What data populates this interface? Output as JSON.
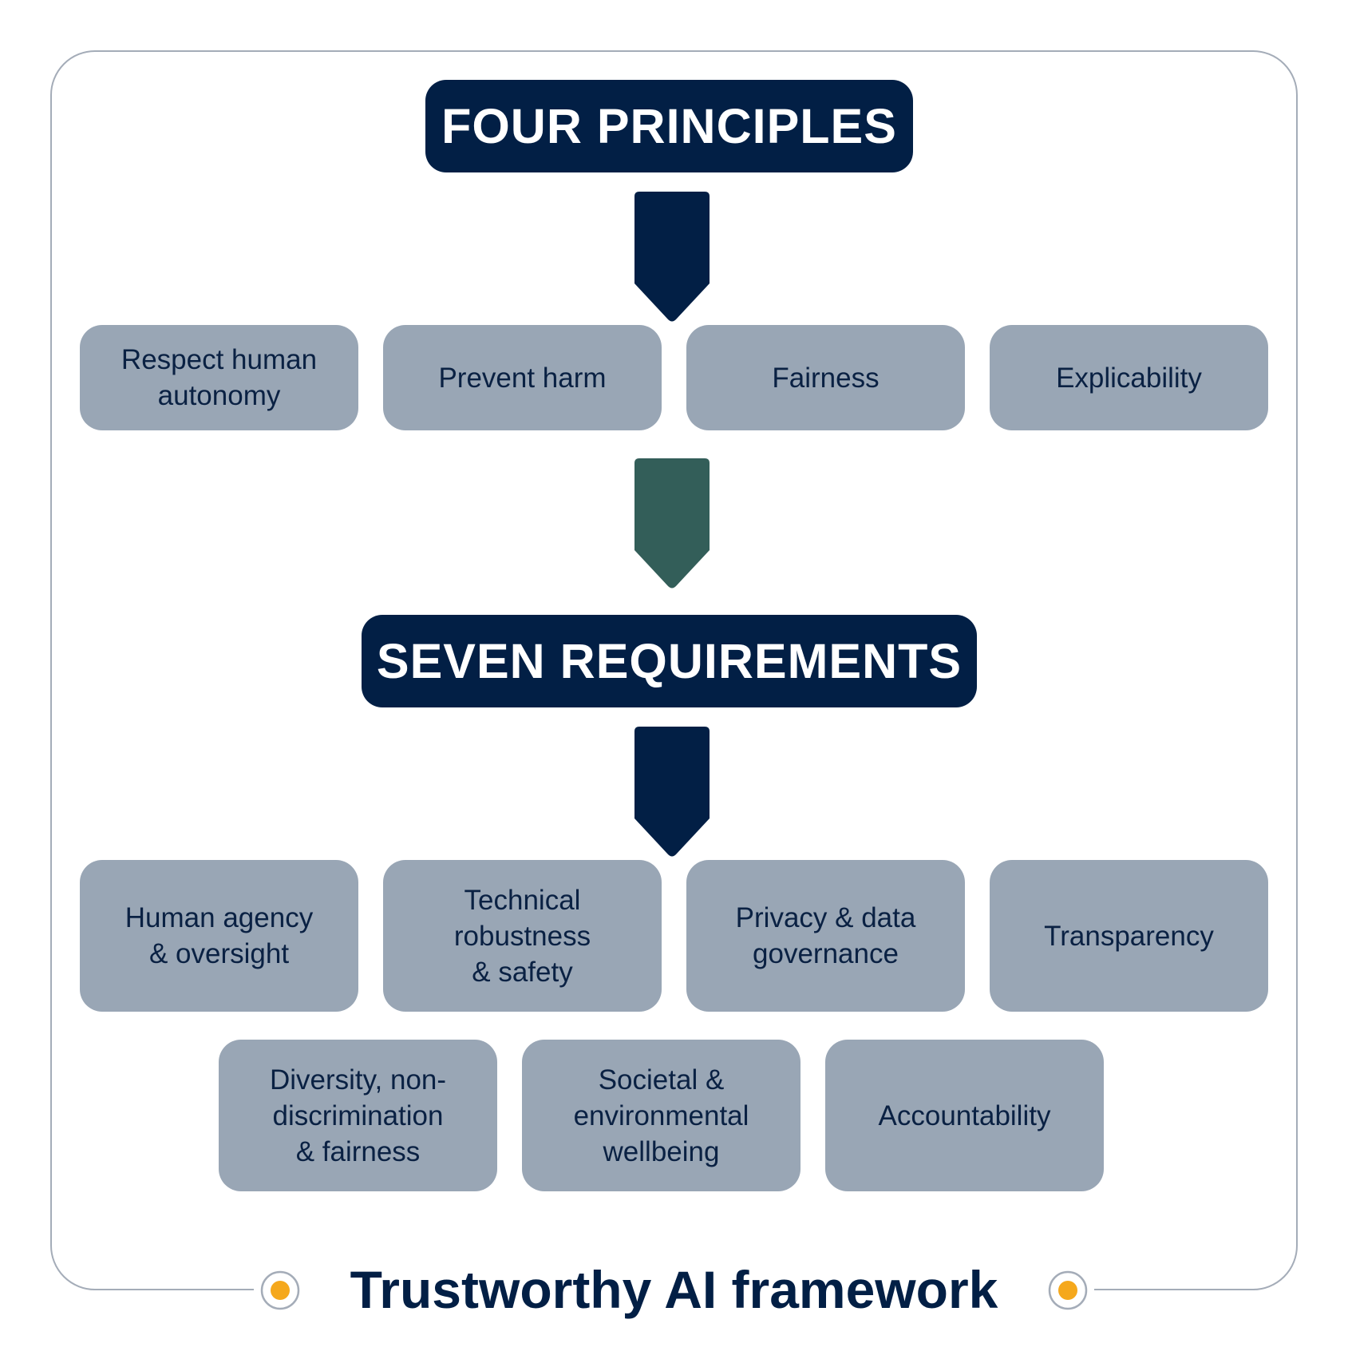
{
  "headings": {
    "principles": "FOUR PRINCIPLES",
    "requirements": "SEVEN REQUIREMENTS"
  },
  "principles": [
    "Respect human autonomy",
    "Prevent harm",
    "Fairness",
    "Explicability"
  ],
  "requirements": [
    "Human agency & oversight",
    "Technical robustness & safety",
    "Privacy & data governance",
    "Transparency",
    "Diversity, non-discrimination & fairness",
    "Societal & environmental wellbeing",
    "Accountability"
  ],
  "caption": "Trustworthy AI framework",
  "colors": {
    "navy": "#021f45",
    "card": "#99a6b5",
    "card_text": "#0a2143",
    "green_arrow": "#335e59",
    "accent_dot": "#f5a81c",
    "frame": "#a4acb8"
  },
  "icons": {
    "arrow": "down-arrow-icon",
    "dot": "circle-dot-icon"
  }
}
